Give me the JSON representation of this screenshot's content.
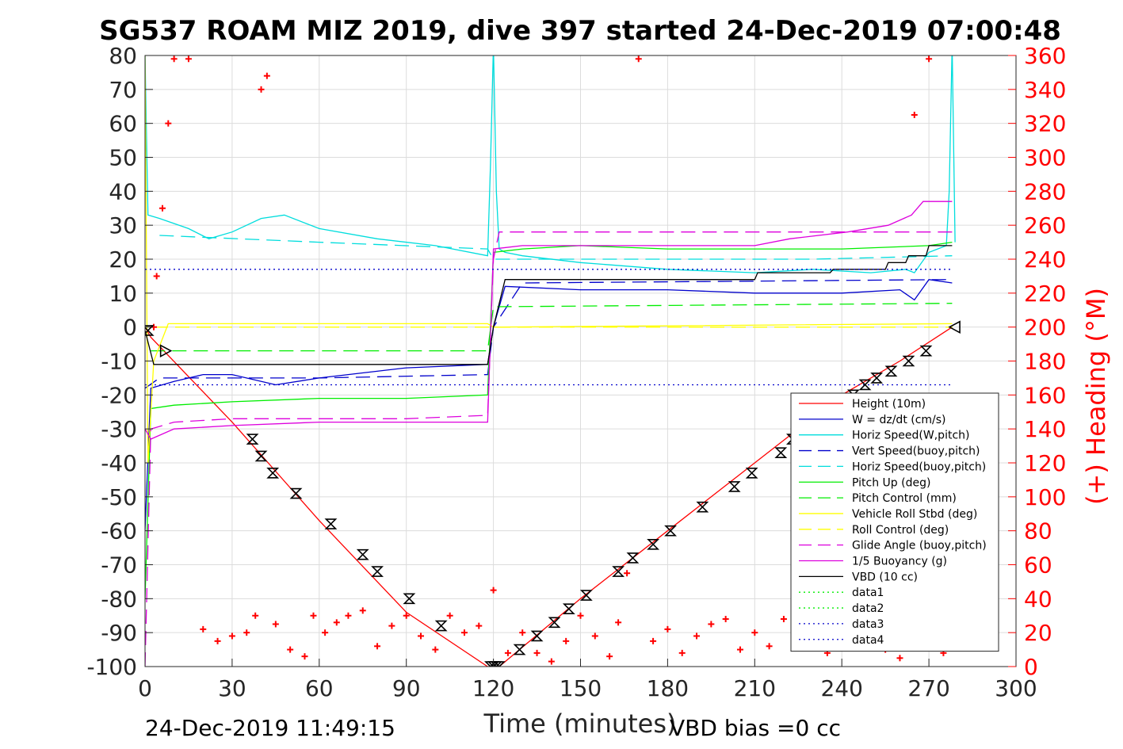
{
  "chart_data": {
    "type": "line",
    "title": "SG537 ROAM MIZ 2019, dive 397 started 24-Dec-2019 07:00:48",
    "xlabel": "Time (minutes)",
    "ylabel_right": "(+) Heading (°M)",
    "footer_left": "24-Dec-2019 11:49:15",
    "footer_right": "VBD bias =0 cc",
    "xlim": [
      0,
      300
    ],
    "ylim": [
      -100,
      80
    ],
    "ylim_right": [
      0,
      360
    ],
    "x_ticks": [
      "0",
      "30",
      "60",
      "90",
      "120",
      "150",
      "180",
      "210",
      "240",
      "270",
      "300"
    ],
    "y_ticks": [
      "80",
      "70",
      "60",
      "50",
      "40",
      "30",
      "20",
      "10",
      "0",
      "-10",
      "-20",
      "-30",
      "-40",
      "-50",
      "-60",
      "-70",
      "-80",
      "-90",
      "-100"
    ],
    "y_ticks_right": [
      "360",
      "340",
      "320",
      "300",
      "280",
      "260",
      "240",
      "220",
      "200",
      "180",
      "160",
      "140",
      "120",
      "100",
      "80",
      "60",
      "40",
      "20",
      "0"
    ],
    "grid": true,
    "legend_position": "lower-right",
    "series": [
      {
        "name": "Height (10m)",
        "color": "#ff0000",
        "style": "solid",
        "x": [
          0,
          2,
          30,
          60,
          90,
          118,
          122,
          150,
          180,
          210,
          240,
          260,
          278
        ],
        "y": [
          0,
          -3,
          -28,
          -57,
          -84,
          -100,
          -100,
          -80,
          -60,
          -40,
          -20,
          -10,
          0
        ]
      },
      {
        "name": "W = dz/dt (cm/s)",
        "color": "#0000cc",
        "style": "solid",
        "x": [
          0,
          2,
          10,
          20,
          30,
          45,
          60,
          90,
          118,
          120,
          124,
          150,
          180,
          210,
          240,
          260,
          265,
          270,
          278
        ],
        "y": [
          -60,
          -18,
          -16,
          -14,
          -14,
          -17,
          -15,
          -12,
          -11,
          0,
          12,
          11,
          11,
          10,
          10,
          11,
          8,
          14,
          13
        ]
      },
      {
        "name": "Horiz Speed(W,pitch)",
        "color": "#00dddd",
        "style": "solid",
        "x": [
          0,
          1,
          5,
          15,
          22,
          30,
          40,
          48,
          60,
          80,
          100,
          118,
          119,
          120,
          121,
          122,
          124,
          130,
          150,
          180,
          210,
          230,
          250,
          262,
          265,
          270,
          276,
          277,
          278,
          279
        ],
        "y": [
          80,
          33,
          32,
          29,
          26,
          28,
          32,
          33,
          29,
          26,
          24,
          21,
          48,
          83,
          40,
          23,
          22,
          21,
          19,
          17,
          16,
          17,
          16,
          17,
          16,
          22,
          24,
          40,
          83,
          25
        ]
      },
      {
        "name": "Vert Speed(buoy,pitch)",
        "color": "#0000cc",
        "style": "dashed",
        "x": [
          0,
          5,
          60,
          118,
          120,
          130,
          278
        ],
        "y": [
          -18,
          -15,
          -15,
          -14,
          0,
          13,
          14
        ]
      },
      {
        "name": "Horiz Speed(buoy,pitch)",
        "color": "#00dddd",
        "style": "dashed",
        "x": [
          5,
          60,
          118,
          120,
          130,
          210,
          230,
          278
        ],
        "y": [
          27,
          25,
          23,
          20,
          20,
          20,
          20,
          21
        ]
      },
      {
        "name": "Pitch Up (deg)",
        "color": "#00ee00",
        "style": "solid",
        "x": [
          0,
          2,
          10,
          30,
          60,
          90,
          118,
          120,
          130,
          150,
          180,
          210,
          240,
          270,
          278
        ],
        "y": [
          -80,
          -24,
          -23,
          -22,
          -21,
          -21,
          -20,
          22,
          23,
          24,
          23,
          23,
          23,
          24,
          25
        ]
      },
      {
        "name": "Pitch Control (mm)",
        "color": "#00ee00",
        "style": "dashed",
        "x": [
          2,
          118,
          120,
          278
        ],
        "y": [
          -7,
          -7,
          6,
          7
        ]
      },
      {
        "name": "Vehicle Roll Stbd (deg)",
        "color": "#ffff00",
        "style": "solid",
        "x": [
          0,
          1,
          3,
          8,
          30,
          60,
          90,
          118,
          120,
          278
        ],
        "y": [
          80,
          -40,
          -10,
          1,
          1,
          1,
          1,
          1,
          0,
          1
        ]
      },
      {
        "name": "Roll Control (deg)",
        "color": "#ffff00",
        "style": "dashed",
        "x": [
          3,
          278
        ],
        "y": [
          0,
          0
        ]
      },
      {
        "name": "Glide Angle (buoy,pitch)",
        "color": "#dd00dd",
        "style": "dashed",
        "x": [
          0,
          2,
          10,
          30,
          60,
          90,
          118,
          120,
          122,
          130,
          200,
          260,
          278
        ],
        "y": [
          -100,
          -30,
          -28,
          -27,
          -27,
          -27,
          -26,
          20,
          28,
          28,
          28,
          28,
          28
        ]
      },
      {
        "name": "1/5 Buoyancy (g)",
        "color": "#dd00dd",
        "style": "solid",
        "x": [
          0,
          2,
          10,
          30,
          60,
          118,
          120,
          130,
          210,
          222,
          242,
          256,
          264,
          268,
          278
        ],
        "y": [
          -30,
          -33,
          -30,
          -29,
          -28,
          -28,
          23,
          24,
          24,
          26,
          28,
          30,
          33,
          37,
          37
        ]
      },
      {
        "name": "VBD (10 cc)",
        "color": "#000000",
        "style": "solid",
        "x": [
          0,
          3,
          118,
          120,
          124,
          125,
          127,
          210,
          211,
          236,
          237,
          255,
          256,
          262,
          263,
          269,
          270,
          278
        ],
        "y": [
          -1,
          -11,
          -11,
          0,
          14,
          14,
          14,
          14,
          16,
          16,
          17,
          17,
          19,
          19,
          21,
          21,
          24,
          24
        ]
      },
      {
        "name": "data1",
        "color": "#00ee00",
        "style": "dotted",
        "x": [],
        "y": []
      },
      {
        "name": "data2",
        "color": "#00ee00",
        "style": "dotted",
        "x": [],
        "y": []
      },
      {
        "name": "data3",
        "color": "#0000cc",
        "style": "dotted",
        "x": [
          0,
          278
        ],
        "y": [
          17,
          17
        ]
      },
      {
        "name": "data4",
        "color": "#0000cc",
        "style": "dotted",
        "x": [
          0,
          278
        ],
        "y": [
          -17,
          -17
        ]
      }
    ],
    "heading": {
      "axis": "right",
      "color": "#ff0000",
      "marker": "+",
      "x": [
        3,
        4,
        6,
        8,
        10,
        15,
        20,
        25,
        30,
        35,
        38,
        40,
        42,
        45,
        50,
        55,
        58,
        62,
        66,
        70,
        75,
        80,
        85,
        90,
        95,
        100,
        105,
        110,
        115,
        120,
        125,
        130,
        135,
        140,
        145,
        150,
        155,
        160,
        163,
        166,
        170,
        175,
        180,
        185,
        190,
        195,
        200,
        205,
        210,
        215,
        220,
        225,
        230,
        235,
        240,
        245,
        250,
        255,
        260,
        265,
        270,
        275
      ],
      "y": [
        200,
        230,
        270,
        320,
        358,
        358,
        22,
        15,
        18,
        20,
        30,
        340,
        348,
        25,
        10,
        6,
        30,
        20,
        26,
        30,
        33,
        12,
        24,
        30,
        18,
        10,
        30,
        20,
        24,
        45,
        8,
        20,
        8,
        3,
        15,
        30,
        18,
        6,
        26,
        55,
        358,
        15,
        22,
        8,
        18,
        25,
        28,
        10,
        20,
        12,
        28,
        30,
        20,
        8,
        14,
        30,
        22,
        10,
        5,
        325,
        358,
        8
      ]
    },
    "tick_markers": {
      "style": "bowtie",
      "x": [
        1,
        37,
        40,
        44,
        52,
        64,
        75,
        80,
        91,
        102,
        119,
        120,
        121,
        122,
        129,
        135,
        141,
        146,
        152,
        163,
        168,
        175,
        181,
        192,
        203,
        209,
        219,
        223,
        230,
        236,
        241,
        244,
        248,
        252,
        257,
        263,
        269
      ],
      "y": [
        -1,
        -33,
        -38,
        -43,
        -49,
        -58,
        -67,
        -72,
        -80,
        -88,
        -100,
        -100,
        -100,
        -100,
        -95,
        -91,
        -87,
        -83,
        -79,
        -72,
        -68,
        -64,
        -60,
        -53,
        -47,
        -43,
        -37,
        -33,
        -29,
        -26,
        -22,
        -20,
        -17,
        -15,
        -13,
        -10,
        -7
      ]
    },
    "direction_markers": [
      {
        "x": 7,
        "y": -7,
        "pointing": "right"
      },
      {
        "x": 279,
        "y": 0,
        "pointing": "left"
      }
    ]
  }
}
